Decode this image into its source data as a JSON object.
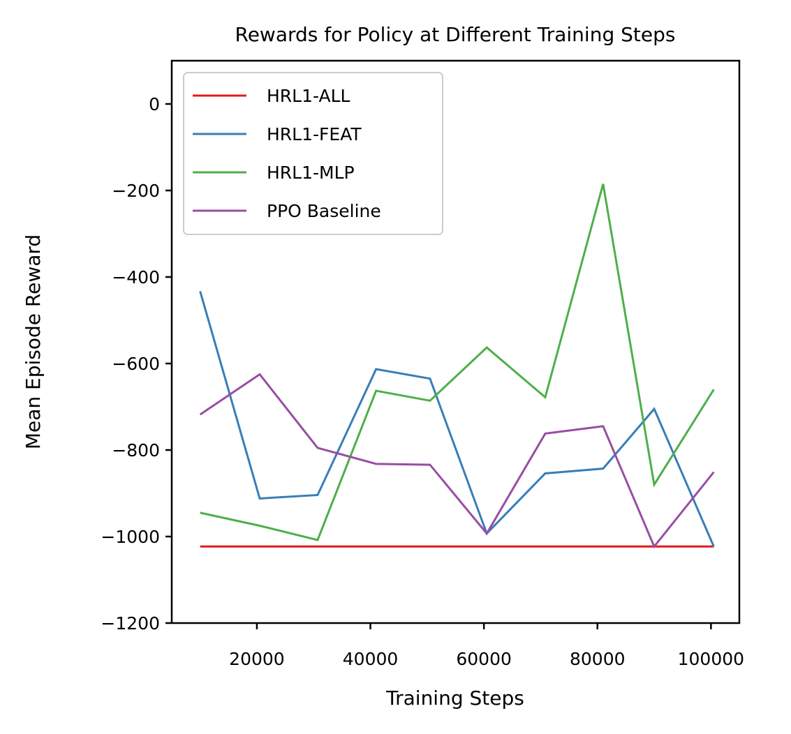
{
  "chart_data": {
    "type": "line",
    "title": "Rewards for Policy at Different Training Steps",
    "xlabel": "Training Steps",
    "ylabel": "Mean Episode Reward",
    "xlim": [
      5000,
      105000
    ],
    "ylim": [
      -1200,
      100
    ],
    "xticks": [
      20000,
      40000,
      60000,
      80000,
      100000
    ],
    "xtick_labels": [
      "20000",
      "40000",
      "60000",
      "80000",
      "100000"
    ],
    "yticks": [
      0,
      -200,
      -400,
      -600,
      -800,
      -1000,
      -1200
    ],
    "ytick_labels": [
      "0",
      "−200",
      "−400",
      "−600",
      "−800",
      "−1000",
      "−1200"
    ],
    "grid": false,
    "legend_position": "upper-left",
    "x": [
      10000,
      20500,
      30700,
      41000,
      50500,
      60500,
      70800,
      81000,
      90000,
      100500
    ],
    "series": [
      {
        "name": "HRL1-ALL",
        "color": "#e41a1c",
        "values": [
          -1023,
          -1023,
          -1023,
          -1023,
          -1023,
          -1023,
          -1023,
          -1023,
          -1023,
          -1023
        ]
      },
      {
        "name": "HRL1-FEAT",
        "color": "#377eb8",
        "values": [
          -433,
          -912,
          -904,
          -613,
          -635,
          -993,
          -854,
          -843,
          -705,
          -1023
        ]
      },
      {
        "name": "HRL1-MLP",
        "color": "#4daf4a",
        "values": [
          -945,
          -975,
          -1008,
          -663,
          -686,
          -563,
          -678,
          -185,
          -880,
          -660
        ]
      },
      {
        "name": "PPO Baseline",
        "color": "#984ea3",
        "values": [
          -718,
          -625,
          -795,
          -832,
          -834,
          -993,
          -762,
          -745,
          -1023,
          -851
        ]
      }
    ]
  }
}
